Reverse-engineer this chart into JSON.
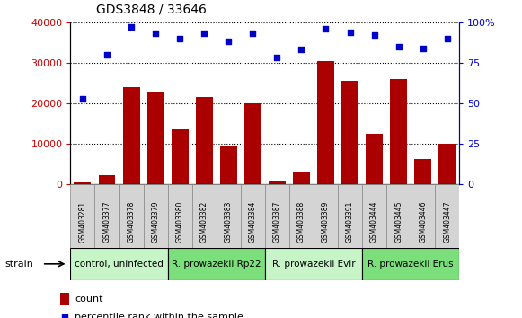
{
  "title": "GDS3848 / 33646",
  "samples": [
    "GSM403281",
    "GSM403377",
    "GSM403378",
    "GSM403379",
    "GSM403380",
    "GSM403382",
    "GSM403383",
    "GSM403384",
    "GSM403387",
    "GSM403388",
    "GSM403389",
    "GSM403391",
    "GSM403444",
    "GSM403445",
    "GSM403446",
    "GSM403447"
  ],
  "counts": [
    500,
    2200,
    24000,
    23000,
    13500,
    21500,
    9500,
    20000,
    900,
    3200,
    30500,
    25500,
    12500,
    26000,
    6200,
    10000
  ],
  "percentiles": [
    53,
    80,
    97,
    93,
    90,
    93,
    88,
    93,
    78,
    83,
    96,
    94,
    92,
    85,
    84,
    90
  ],
  "groups": [
    {
      "label": "control, uninfected",
      "start": 0,
      "end": 4
    },
    {
      "label": "R. prowazekii Rp22",
      "start": 4,
      "end": 8
    },
    {
      "label": "R. prowazekii Evir",
      "start": 8,
      "end": 12
    },
    {
      "label": "R. prowazekii Erus",
      "start": 12,
      "end": 16
    }
  ],
  "grp_colors": [
    "#c8f5c8",
    "#7be07b",
    "#c8f5c8",
    "#7be07b"
  ],
  "bar_color": "#AA0000",
  "dot_color": "#0000CC",
  "left_axis_color": "#CC0000",
  "right_axis_color": "#0000CC",
  "ylim_left": [
    0,
    40000
  ],
  "ylim_right": [
    0,
    100
  ],
  "yticks_left": [
    0,
    10000,
    20000,
    30000,
    40000
  ],
  "yticks_right": [
    0,
    25,
    50,
    75,
    100
  ],
  "ytick_labels_left": [
    "0",
    "10000",
    "20000",
    "30000",
    "40000"
  ],
  "ytick_labels_right": [
    "0",
    "25",
    "50",
    "75",
    "100%"
  ],
  "background_color": "#ffffff",
  "grid_color": "#000000",
  "strain_label": "strain",
  "legend_count_label": "count",
  "legend_percentile_label": "percentile rank within the sample",
  "gray_cell_color": "#d4d4d4",
  "gray_cell_edge": "#888888"
}
